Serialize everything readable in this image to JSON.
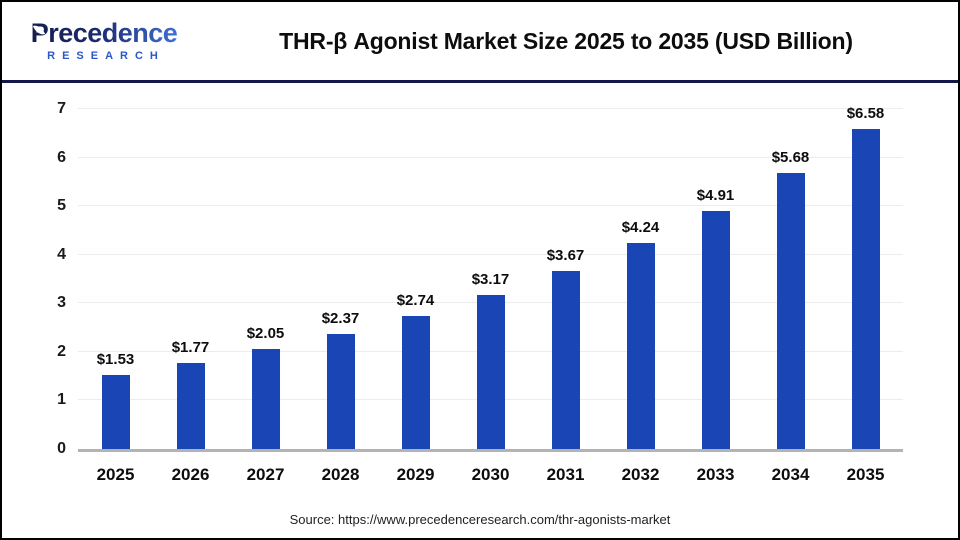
{
  "logo": {
    "name": "Precedence",
    "subtitle": "RESEARCH"
  },
  "title": "THR-β Agonist Market Size 2025 to 2035 (USD Billion)",
  "source": "Source: https://www.precedenceresearch.com/thr-agonists-market",
  "colors": {
    "bar": "#1a45b5",
    "header_separator": "#12194a",
    "baseline": "#b3b3b3",
    "gridline": "#ececec",
    "logo_navy": "#141d4e",
    "logo_blue": "#3f6fd6",
    "logo_subtitle_blue": "#2b57c9"
  },
  "chart_data": {
    "type": "bar",
    "title": "THR-β Agonist Market Size 2025 to 2035 (USD Billion)",
    "categories": [
      "2025",
      "2026",
      "2027",
      "2028",
      "2029",
      "2030",
      "2031",
      "2032",
      "2033",
      "2034",
      "2035"
    ],
    "values": [
      1.53,
      1.77,
      2.05,
      2.37,
      2.74,
      3.17,
      3.67,
      4.24,
      4.91,
      5.68,
      6.58
    ],
    "value_labels": [
      "$1.53",
      "$1.77",
      "$2.05",
      "$2.37",
      "$2.74",
      "$3.17",
      "$3.67",
      "$4.24",
      "$4.91",
      "$5.68",
      "$6.58"
    ],
    "xlabel": "",
    "ylabel": "",
    "ylim": [
      0,
      7
    ],
    "yticks": [
      0,
      1,
      2,
      3,
      4,
      5,
      6,
      7
    ],
    "grid": true,
    "legend": "none",
    "bar_color": "#1a45b5",
    "units": "USD Billion"
  }
}
